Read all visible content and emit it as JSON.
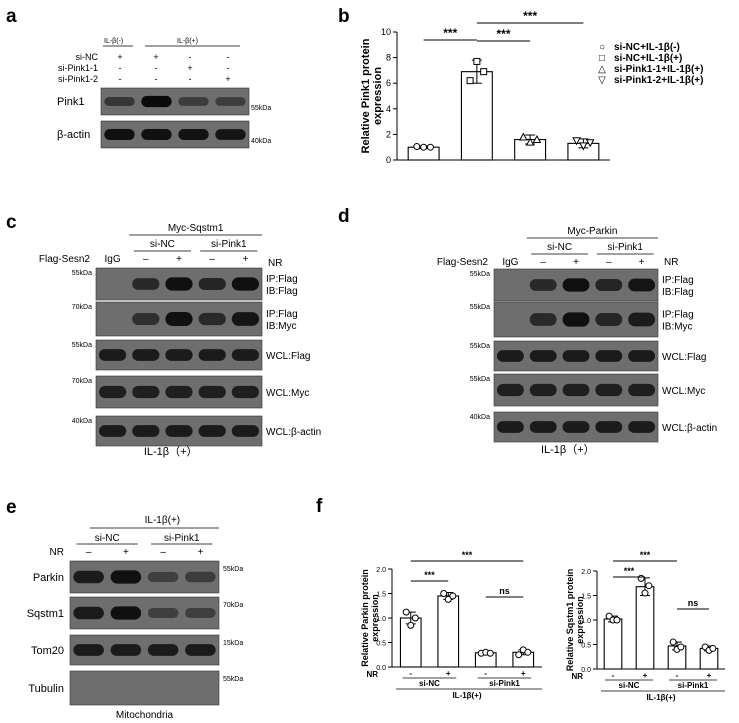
{
  "panels": {
    "a": "a",
    "b": "b",
    "c": "c",
    "d": "d",
    "e": "e",
    "f": "f"
  },
  "panel_a": {
    "il_neg": "IL-β(-)",
    "il_pos": "IL-β(+)",
    "rows": [
      {
        "label": "si-NC",
        "marks": [
          "+",
          "+",
          "-",
          "-"
        ]
      },
      {
        "label": "si-Pink1-1",
        "marks": [
          "-",
          "-",
          "+",
          "-"
        ]
      },
      {
        "label": "si-Pink1-2",
        "marks": [
          "-",
          "-",
          "-",
          "+"
        ]
      }
    ],
    "blots": [
      {
        "label": "Pink1",
        "kda": "55kDa",
        "intensity": [
          0.55,
          1.0,
          0.5,
          0.48
        ]
      },
      {
        "label": "β-actin",
        "kda": "40kDa",
        "intensity": [
          0.95,
          0.95,
          0.92,
          0.9
        ]
      }
    ]
  },
  "panel_c": {
    "header": "Myc-Sqstm1",
    "groups": [
      "si-NC",
      "si-Pink1"
    ],
    "nr_label": "NR",
    "flag_label": "Flag-Sesn2",
    "igg": "IgG",
    "nr_marks": [
      "–",
      "+",
      "–",
      "+"
    ],
    "blots": [
      {
        "label1": "IP:Flag",
        "label2": "IB:Flag",
        "kda": "55kDa",
        "intensity": [
          0,
          0.7,
          0.95,
          0.75,
          0.95
        ]
      },
      {
        "label1": "IP:Flag",
        "label2": "IB:Myc",
        "kda": "70kDa",
        "intensity": [
          0,
          0.65,
          0.95,
          0.7,
          0.9
        ]
      },
      {
        "label1": "WCL:Flag",
        "label2": "",
        "kda": "55kDa",
        "intensity": [
          0.85,
          0.85,
          0.85,
          0.85,
          0.85
        ]
      },
      {
        "label1": "WCL:Myc",
        "label2": "",
        "kda": "70kDa",
        "intensity": [
          0.8,
          0.8,
          0.8,
          0.8,
          0.8
        ]
      },
      {
        "label1": "WCL:β-actin",
        "label2": "",
        "kda": "40kDa",
        "intensity": [
          0.85,
          0.85,
          0.85,
          0.85,
          0.85
        ]
      }
    ],
    "footer": "IL-1β（+）"
  },
  "panel_d": {
    "header": "Myc-Parkin",
    "groups": [
      "si-NC",
      "si-Pink1"
    ],
    "nr_label": "NR",
    "flag_label": "Flag-Sesn2",
    "igg": "IgG",
    "nr_marks": [
      "–",
      "+",
      "–",
      "+"
    ],
    "blots": [
      {
        "label1": "IP:Flag",
        "label2": "IB:Flag",
        "kda": "55kDa",
        "intensity": [
          0,
          0.7,
          0.95,
          0.75,
          0.9
        ]
      },
      {
        "label1": "IP:Flag",
        "label2": "IB:Myc",
        "kda": "55kDa",
        "intensity": [
          0,
          0.7,
          0.95,
          0.75,
          0.85
        ]
      },
      {
        "label1": "WCL:Flag",
        "label2": "",
        "kda": "55kDa",
        "intensity": [
          0.85,
          0.85,
          0.85,
          0.85,
          0.85
        ]
      },
      {
        "label1": "WCL:Myc",
        "label2": "",
        "kda": "55kDa",
        "intensity": [
          0.8,
          0.8,
          0.8,
          0.8,
          0.8
        ]
      },
      {
        "label1": "WCL:β-actin",
        "label2": "",
        "kda": "40kDa",
        "intensity": [
          0.85,
          0.85,
          0.85,
          0.85,
          0.85
        ]
      }
    ],
    "footer": "IL-1β（+）"
  },
  "panel_e": {
    "header": "IL-1β(+)",
    "groups": [
      "si-NC",
      "si-Pink1"
    ],
    "nr_label": "NR",
    "nr_marks": [
      "–",
      "+",
      "–",
      "+"
    ],
    "blots": [
      {
        "label": "Parkin",
        "kda": "55kDa",
        "intensity": [
          0.85,
          0.95,
          0.45,
          0.5
        ]
      },
      {
        "label": "Sqstm1",
        "kda": "70kDa",
        "intensity": [
          0.85,
          0.95,
          0.45,
          0.45
        ]
      },
      {
        "label": "Tom20",
        "kda": "15kDa",
        "intensity": [
          0.85,
          0.85,
          0.85,
          0.85
        ]
      },
      {
        "label": "Tubulin",
        "kda": "55kDa",
        "intensity": [
          0,
          0,
          0,
          0
        ]
      }
    ],
    "footer": "Mitochondria"
  },
  "chart_data": [
    {
      "type": "bar",
      "panel": "b",
      "ylabel": "Relative Pink1 protein expression",
      "ylim": [
        0,
        10
      ],
      "yticks": [
        "0",
        "2",
        "4",
        "6",
        "8",
        "10"
      ],
      "categories": [
        "si-NC+IL-1β(-)",
        "si-NC+IL-1β(+)",
        "si-Pink1-1+IL-1β(+)",
        "si-Pink1-2+IL-1β(+)"
      ],
      "values": [
        1.0,
        6.9,
        1.6,
        1.3
      ],
      "errors": [
        0.1,
        0.9,
        0.35,
        0.35
      ],
      "points": [
        [
          1.05,
          1.0,
          1.0
        ],
        [
          6.2,
          7.7,
          6.9
        ],
        [
          1.8,
          1.4,
          1.6
        ],
        [
          1.5,
          1.1,
          1.35
        ]
      ],
      "markers": [
        "○",
        "□",
        "△",
        "▽"
      ],
      "significance": [
        {
          "from": 0,
          "to": 1,
          "label": "***"
        },
        {
          "from": 1,
          "to": 2,
          "label": "***"
        },
        {
          "from": 1,
          "to": 3,
          "label": "***"
        }
      ],
      "legend_position": "right"
    },
    {
      "type": "bar",
      "panel": "f-left",
      "ylabel": "Relative Parkin protein expression",
      "ylim": [
        0,
        2.0
      ],
      "yticks": [
        "0.0",
        "0.5",
        "1.0",
        "1.5",
        "2.0"
      ],
      "categories": [
        "si-NC -",
        "si-NC +",
        "si-Pink1 -",
        "si-Pink1 +"
      ],
      "nr_marks": [
        "-",
        "+",
        "-",
        "+"
      ],
      "values": [
        1.0,
        1.45,
        0.29,
        0.3
      ],
      "errors": [
        0.12,
        0.07,
        0.03,
        0.05
      ],
      "points": [
        [
          1.12,
          0.85,
          1.0
        ],
        [
          1.5,
          1.38,
          1.45
        ],
        [
          0.28,
          0.3,
          0.28
        ],
        [
          0.25,
          0.35,
          0.3
        ]
      ],
      "significance": [
        {
          "from": 0,
          "to": 1,
          "label": "***"
        },
        {
          "from": 0,
          "to": 3,
          "label": "***"
        },
        {
          "from": 2,
          "to": 3,
          "label": "ns"
        }
      ],
      "group_labels": [
        "si-NC",
        "si-Pink1"
      ],
      "nr_label": "NR",
      "footer": "IL-1β(+)"
    },
    {
      "type": "bar",
      "panel": "f-right",
      "ylabel": "Relative Sqstm1 protein expression",
      "ylim": [
        0,
        2.0
      ],
      "yticks": [
        "0.0",
        "0.5",
        "1.0",
        "1.5",
        "2.0"
      ],
      "categories": [
        "si-NC -",
        "si-NC +",
        "si-Pink1 -",
        "si-Pink1 +"
      ],
      "nr_marks": [
        "-",
        "+",
        "-",
        "+"
      ],
      "values": [
        1.02,
        1.68,
        0.47,
        0.42
      ],
      "errors": [
        0.06,
        0.18,
        0.08,
        0.05
      ],
      "points": [
        [
          1.08,
          1.0,
          1.0
        ],
        [
          1.85,
          1.55,
          1.7
        ],
        [
          0.55,
          0.4,
          0.45
        ],
        [
          0.45,
          0.38,
          0.42
        ]
      ],
      "significance": [
        {
          "from": 0,
          "to": 1,
          "label": "***"
        },
        {
          "from": 0,
          "to": 2,
          "label": "***"
        },
        {
          "from": 2,
          "to": 3,
          "label": "ns"
        }
      ],
      "group_labels": [
        "si-NC",
        "si-Pink1"
      ],
      "nr_label": "NR",
      "footer": "IL-1β(+)"
    }
  ]
}
